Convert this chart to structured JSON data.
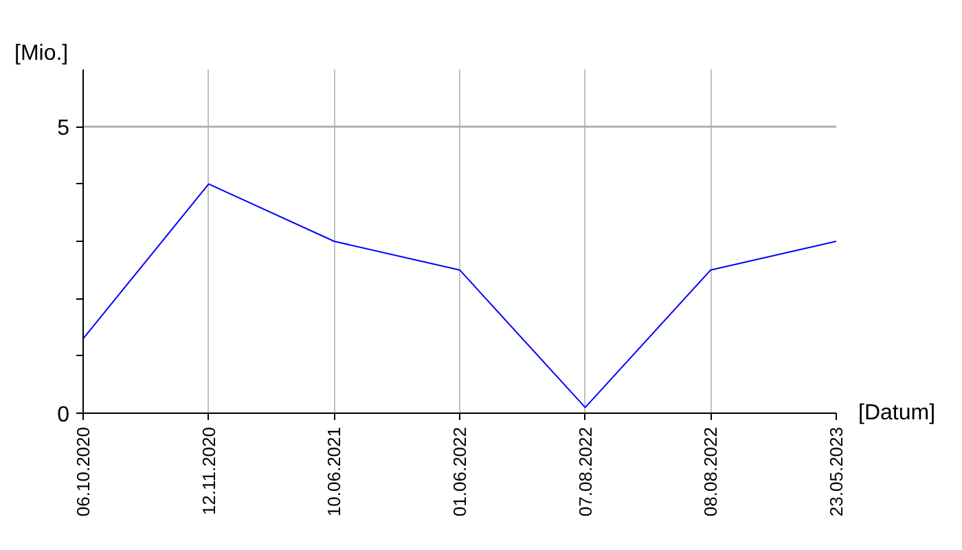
{
  "chart_data": {
    "type": "line",
    "xlabel": "[Datum]",
    "ylabel": "[Mio.]",
    "categories": [
      "06.10.2020",
      "12.11.2020",
      "10.06.2021",
      "01.06.2022",
      "07.08.2022",
      "08.08.2022",
      "23.05.2023"
    ],
    "series": [
      {
        "color": "#0000ff",
        "values": [
          1.3,
          4,
          3,
          2.5,
          0.1,
          2.5,
          3
        ]
      }
    ],
    "ylim": [
      0,
      6
    ],
    "yticks": [
      0,
      {
        "value": 1,
        "label": null
      },
      {
        "value": 2,
        "label": null
      },
      {
        "value": 3,
        "label": null
      },
      {
        "value": 4,
        "label": null
      },
      5
    ],
    "ref_lines": [
      {
        "axis": "y",
        "value": 5,
        "color": "#b0b0b0"
      }
    ],
    "grid": "x",
    "marker": "none",
    "line_style": "solid"
  }
}
